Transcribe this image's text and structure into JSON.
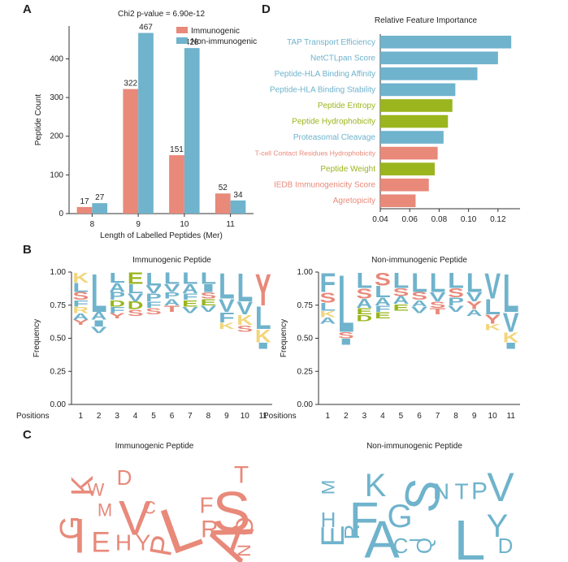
{
  "chart_data": [
    {
      "type": "bar",
      "panel": "A",
      "title": "Chi2 p-value = 6.90e-12",
      "xlabel": "Length of Labelled Peptides (Mer)",
      "ylabel": "Peptide Count",
      "categories": [
        "8",
        "9",
        "10",
        "11"
      ],
      "series": [
        {
          "name": "Immunogenic",
          "color": "#e8897a",
          "values": [
            17,
            322,
            151,
            52
          ]
        },
        {
          "name": "Non-immunogenic",
          "color": "#6fb3cc",
          "values": [
            27,
            467,
            428,
            34
          ]
        }
      ],
      "ylim": [
        0,
        485
      ],
      "yticks": [
        0,
        100,
        200,
        300,
        400
      ],
      "legend": "upper right"
    },
    {
      "type": "barh",
      "panel": "D",
      "title": "Relative Feature Importance",
      "categories": [
        "TAP Transport Efficiency",
        "NetCTLpan Score",
        "Peptide-HLA Binding Affinity",
        "Peptide-HLA Binding Stability",
        "Peptide Entropy",
        "Peptide Hydrophobicity",
        "Proteasomal Cleavage",
        "T-cell Contact Residues Hydrophobicity",
        "Peptide Weight",
        "IEDB Immunogenicity Score",
        "Agretopicity"
      ],
      "values": [
        0.129,
        0.12,
        0.106,
        0.091,
        0.089,
        0.086,
        0.083,
        0.079,
        0.077,
        0.073,
        0.064
      ],
      "colors": [
        "#6fb3cc",
        "#6fb3cc",
        "#6fb3cc",
        "#6fb3cc",
        "#9ab51e",
        "#9ab51e",
        "#6fb3cc",
        "#e8897a",
        "#9ab51e",
        "#e8897a",
        "#e8897a"
      ],
      "xlim": [
        0.04,
        0.135
      ],
      "xticks": [
        0.04,
        0.06,
        0.08,
        {
          "value": 0.1,
          "label": "0.10"
        },
        0.12
      ]
    },
    {
      "type": "logo",
      "panel": "B",
      "title": "Immunogenic Peptide",
      "xlabel": "Positions",
      "ylabel": "Frequency",
      "categories": [
        "1",
        "2",
        "3",
        "4",
        "5",
        "6",
        "7",
        "8",
        "9",
        "10",
        "11"
      ],
      "ylim": [
        0,
        1
      ],
      "yticks": [
        {
          "value": 0,
          "label": "0.00"
        },
        {
          "value": 0.25,
          "label": "0.25"
        },
        {
          "value": 0.5,
          "label": "0.50"
        },
        {
          "value": 0.75,
          "label": "0.75"
        },
        {
          "value": 1,
          "label": "1.00"
        }
      ],
      "stacks": [
        [
          {
            "letter": "K",
            "value": 0.08
          },
          {
            "letter": "L",
            "value": 0.07
          },
          {
            "letter": "S",
            "value": 0.06
          },
          {
            "letter": "F",
            "value": 0.05
          },
          {
            "letter": "R",
            "value": 0.05
          },
          {
            "letter": "A",
            "value": 0.05
          },
          {
            "letter": "Y",
            "value": 0.04
          }
        ],
        [
          {
            "letter": "L",
            "value": 0.3
          },
          {
            "letter": "A",
            "value": 0.06
          },
          {
            "letter": "I",
            "value": 0.05
          },
          {
            "letter": "V",
            "value": 0.05
          }
        ],
        [
          {
            "letter": "L",
            "value": 0.08
          },
          {
            "letter": "A",
            "value": 0.07
          },
          {
            "letter": "P",
            "value": 0.06
          },
          {
            "letter": "D",
            "value": 0.05
          },
          {
            "letter": "F",
            "value": 0.05
          },
          {
            "letter": "Y",
            "value": 0.04
          }
        ],
        [
          {
            "letter": "E",
            "value": 0.09
          },
          {
            "letter": "L",
            "value": 0.07
          },
          {
            "letter": "V",
            "value": 0.06
          },
          {
            "letter": "D",
            "value": 0.06
          },
          {
            "letter": "S",
            "value": 0.05
          }
        ],
        [
          {
            "letter": "L",
            "value": 0.1
          },
          {
            "letter": "V",
            "value": 0.06
          },
          {
            "letter": "P",
            "value": 0.06
          },
          {
            "letter": "F",
            "value": 0.05
          },
          {
            "letter": "S",
            "value": 0.05
          }
        ],
        [
          {
            "letter": "L",
            "value": 0.09
          },
          {
            "letter": "V",
            "value": 0.06
          },
          {
            "letter": "P",
            "value": 0.05
          },
          {
            "letter": "A",
            "value": 0.05
          },
          {
            "letter": "T",
            "value": 0.05
          }
        ],
        [
          {
            "letter": "L",
            "value": 0.09
          },
          {
            "letter": "A",
            "value": 0.07
          },
          {
            "letter": "F",
            "value": 0.05
          },
          {
            "letter": "E",
            "value": 0.05
          },
          {
            "letter": "V",
            "value": 0.05
          }
        ],
        [
          {
            "letter": "L",
            "value": 0.09
          },
          {
            "letter": "I",
            "value": 0.06
          },
          {
            "letter": "S",
            "value": 0.05
          },
          {
            "letter": "E",
            "value": 0.05
          },
          {
            "letter": "V",
            "value": 0.05
          }
        ],
        [
          {
            "letter": "L",
            "value": 0.2
          },
          {
            "letter": "V",
            "value": 0.1
          },
          {
            "letter": "F",
            "value": 0.08
          },
          {
            "letter": "K",
            "value": 0.05
          }
        ],
        [
          {
            "letter": "L",
            "value": 0.22
          },
          {
            "letter": "V",
            "value": 0.1
          },
          {
            "letter": "K",
            "value": 0.08
          },
          {
            "letter": "S",
            "value": 0.05
          }
        ],
        [
          {
            "letter": "Y",
            "value": 0.25
          },
          {
            "letter": "L",
            "value": 0.18
          },
          {
            "letter": "K",
            "value": 0.1
          },
          {
            "letter": "I",
            "value": 0.05
          }
        ]
      ]
    },
    {
      "type": "logo",
      "title": "Non-immunogenic Peptide",
      "xlabel": "Positions",
      "ylabel": "Frequency",
      "categories": [
        "1",
        "2",
        "3",
        "4",
        "5",
        "6",
        "7",
        "8",
        "9",
        "10",
        "11"
      ],
      "ylim": [
        0,
        1
      ],
      "yticks": [
        {
          "value": 0,
          "label": "0.00"
        },
        {
          "value": 0.25,
          "label": "0.25"
        },
        {
          "value": 0.5,
          "label": "0.50"
        },
        {
          "value": 0.75,
          "label": "0.75"
        },
        {
          "value": 1,
          "label": "1.00"
        }
      ],
      "stacks": [
        [
          {
            "letter": "F",
            "value": 0.15
          },
          {
            "letter": "S",
            "value": 0.08
          },
          {
            "letter": "L",
            "value": 0.06
          },
          {
            "letter": "K",
            "value": 0.05
          },
          {
            "letter": "A",
            "value": 0.05
          }
        ],
        [
          {
            "letter": "L",
            "value": 0.45
          },
          {
            "letter": "S",
            "value": 0.05
          },
          {
            "letter": "I",
            "value": 0.05
          }
        ],
        [
          {
            "letter": "L",
            "value": 0.12
          },
          {
            "letter": "S",
            "value": 0.08
          },
          {
            "letter": "A",
            "value": 0.07
          },
          {
            "letter": "E",
            "value": 0.05
          },
          {
            "letter": "D",
            "value": 0.05
          }
        ],
        [
          {
            "letter": "S",
            "value": 0.1
          },
          {
            "letter": "L",
            "value": 0.09
          },
          {
            "letter": "A",
            "value": 0.06
          },
          {
            "letter": "F",
            "value": 0.05
          },
          {
            "letter": "E",
            "value": 0.05
          }
        ],
        [
          {
            "letter": "L",
            "value": 0.12
          },
          {
            "letter": "S",
            "value": 0.06
          },
          {
            "letter": "A",
            "value": 0.06
          },
          {
            "letter": "E",
            "value": 0.05
          }
        ],
        [
          {
            "letter": "L",
            "value": 0.15
          },
          {
            "letter": "S",
            "value": 0.06
          },
          {
            "letter": "A",
            "value": 0.05
          },
          {
            "letter": "V",
            "value": 0.05
          }
        ],
        [
          {
            "letter": "L",
            "value": 0.15
          },
          {
            "letter": "V",
            "value": 0.07
          },
          {
            "letter": "S",
            "value": 0.05
          },
          {
            "letter": "T",
            "value": 0.05
          }
        ],
        [
          {
            "letter": "L",
            "value": 0.12
          },
          {
            "letter": "S",
            "value": 0.07
          },
          {
            "letter": "P",
            "value": 0.06
          },
          {
            "letter": "V",
            "value": 0.05
          }
        ],
        [
          {
            "letter": "L",
            "value": 0.15
          },
          {
            "letter": "V",
            "value": 0.07
          },
          {
            "letter": "Y",
            "value": 0.06
          },
          {
            "letter": "A",
            "value": 0.05
          }
        ],
        [
          {
            "letter": "V",
            "value": 0.2
          },
          {
            "letter": "L",
            "value": 0.12
          },
          {
            "letter": "Y",
            "value": 0.07
          },
          {
            "letter": "K",
            "value": 0.05
          }
        ],
        [
          {
            "letter": "L",
            "value": 0.3
          },
          {
            "letter": "V",
            "value": 0.15
          },
          {
            "letter": "K",
            "value": 0.08
          },
          {
            "letter": "I",
            "value": 0.05
          }
        ]
      ]
    },
    {
      "type": "wordcloud",
      "panel": "C",
      "title": "Immunogenic Peptide",
      "color": "#e8897a",
      "words": [
        {
          "text": "G",
          "weight": 38
        },
        {
          "text": "I",
          "weight": 60
        },
        {
          "text": "K",
          "weight": 38
        },
        {
          "text": "W",
          "weight": 22
        },
        {
          "text": "D",
          "weight": 26
        },
        {
          "text": "M",
          "weight": 22
        },
        {
          "text": "E",
          "weight": 35
        },
        {
          "text": "H",
          "weight": 28
        },
        {
          "text": "Y",
          "weight": 28
        },
        {
          "text": "V",
          "weight": 60
        },
        {
          "text": "C",
          "weight": 22
        },
        {
          "text": "L",
          "weight": 80
        },
        {
          "text": "P",
          "weight": 38
        },
        {
          "text": "F",
          "weight": 28
        },
        {
          "text": "R",
          "weight": 30
        },
        {
          "text": "S",
          "weight": 70
        },
        {
          "text": "A",
          "weight": 70
        },
        {
          "text": "T",
          "weight": 30
        },
        {
          "text": "Q",
          "weight": 30
        },
        {
          "text": "N",
          "weight": 22
        }
      ]
    },
    {
      "type": "wordcloud",
      "title": "Non-immunogenic Peptide",
      "color": "#6fb3cc",
      "words": [
        {
          "text": "H",
          "weight": 26
        },
        {
          "text": "M",
          "weight": 22
        },
        {
          "text": "E",
          "weight": 40
        },
        {
          "text": "R",
          "weight": 26
        },
        {
          "text": "F",
          "weight": 60
        },
        {
          "text": "K",
          "weight": 40
        },
        {
          "text": "A",
          "weight": 65
        },
        {
          "text": "C",
          "weight": 26
        },
        {
          "text": "G",
          "weight": 40
        },
        {
          "text": "I",
          "weight": 22
        },
        {
          "text": "Q",
          "weight": 26
        },
        {
          "text": "S",
          "weight": 60
        },
        {
          "text": "N",
          "weight": 28
        },
        {
          "text": "T",
          "weight": 28
        },
        {
          "text": "P",
          "weight": 30
        },
        {
          "text": "L",
          "weight": 70
        },
        {
          "text": "V",
          "weight": 50
        },
        {
          "text": "Y",
          "weight": 40
        },
        {
          "text": "D",
          "weight": 26
        }
      ]
    }
  ]
}
